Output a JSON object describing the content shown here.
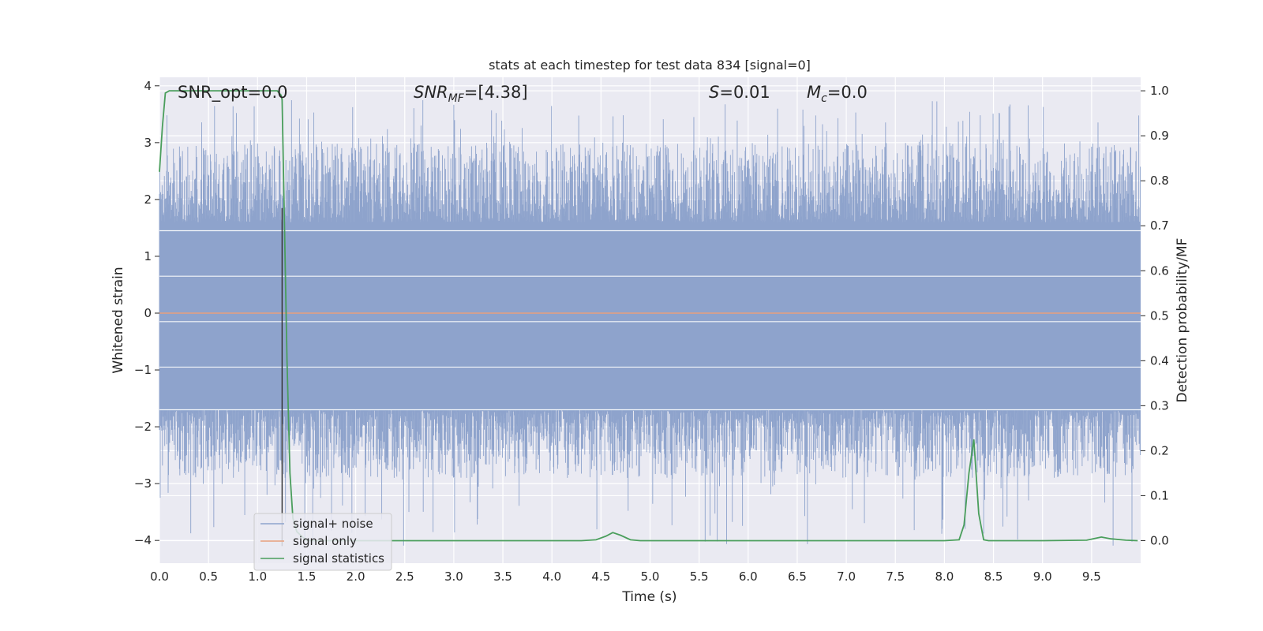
{
  "chart_data": {
    "type": "line",
    "title": "stats at each timestep for test data 834 [signal=0]",
    "xlabel": "Time (s)",
    "ylabel": "Whitened strain",
    "y2label": "Detection probability/MF",
    "xlim": [
      0.0,
      10.0
    ],
    "ylim": [
      -4.4,
      4.15
    ],
    "y2lim": [
      -0.05,
      1.03
    ],
    "x_ticks": [
      "0.0",
      "0.5",
      "1.0",
      "1.5",
      "2.0",
      "2.5",
      "3.0",
      "3.5",
      "4.0",
      "4.5",
      "5.0",
      "5.5",
      "6.0",
      "6.5",
      "7.0",
      "7.5",
      "8.0",
      "8.5",
      "9.0",
      "9.5"
    ],
    "y_ticks": [
      "4",
      "3",
      "2",
      "1",
      "0",
      "−1",
      "−2",
      "−3",
      "−4"
    ],
    "y2_ticks": [
      "1.0",
      "0.9",
      "0.8",
      "0.7",
      "0.6",
      "0.5",
      "0.4",
      "0.3",
      "0.2",
      "0.1",
      "0.0"
    ],
    "grid": true,
    "legend_position": "lower-left",
    "annotations": {
      "snr_opt": "SNR_opt=0.0",
      "snr_mf_name": "SNR",
      "snr_mf_sub": "MF",
      "snr_mf_value": "=[4.38]",
      "s_name": "S",
      "s_value": "=0.01",
      "mc_name": "M",
      "mc_sub": "c",
      "mc_value": "=0.0"
    },
    "series": [
      {
        "name": "signal+ noise",
        "color": "#8ea3cc",
        "kind": "noise",
        "axis": "left",
        "band": [
          -1.55,
          1.45
        ],
        "peak_max": 3.75,
        "trough_min": -4.1
      },
      {
        "name": "signal only",
        "color": "#e8a07d",
        "kind": "constant",
        "axis": "left",
        "value": 0.0
      },
      {
        "name": "signal statistics",
        "color": "#4a9e5c",
        "kind": "line",
        "axis": "right",
        "x": [
          0.0,
          0.03,
          0.06,
          0.1,
          0.2,
          0.5,
          1.0,
          1.2,
          1.24,
          1.25,
          1.27,
          1.3,
          1.33,
          1.36,
          1.4,
          1.5,
          2.0,
          3.0,
          4.0,
          4.3,
          4.45,
          4.55,
          4.62,
          4.7,
          4.8,
          4.9,
          5.0,
          6.0,
          7.0,
          8.0,
          8.15,
          8.2,
          8.25,
          8.3,
          8.35,
          8.4,
          8.45,
          8.5,
          9.0,
          9.45,
          9.6,
          9.7,
          9.85,
          9.97
        ],
        "y": [
          0.82,
          0.92,
          0.995,
          1.0,
          1.0,
          1.0,
          1.0,
          1.0,
          0.99,
          0.98,
          0.75,
          0.4,
          0.15,
          0.05,
          0.02,
          0.0,
          0.0,
          0.0,
          0.0,
          0.0,
          0.002,
          0.01,
          0.018,
          0.012,
          0.002,
          0.0,
          0.0,
          0.0,
          0.0,
          0.0,
          0.002,
          0.035,
          0.15,
          0.225,
          0.06,
          0.002,
          0.0,
          0.0,
          0.0,
          0.001,
          0.008,
          0.004,
          0.001,
          0.0
        ]
      },
      {
        "name": "marker",
        "color": "#333333",
        "kind": "vline",
        "axis": "left",
        "x": 1.25,
        "ymin": -4.1,
        "ymax": 1.85
      }
    ]
  }
}
